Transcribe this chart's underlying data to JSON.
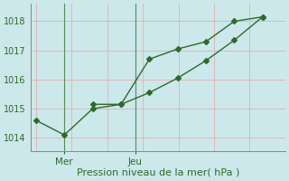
{
  "line1_x": [
    0,
    1,
    2,
    3,
    4,
    5,
    6,
    7,
    8
  ],
  "line1_y": [
    1014.6,
    1014.1,
    1015.0,
    1015.15,
    1016.7,
    1017.05,
    1017.3,
    1018.0,
    1018.15
  ],
  "line2_x": [
    2,
    3,
    4,
    5,
    6,
    7,
    8
  ],
  "line2_y": [
    1015.15,
    1015.15,
    1015.55,
    1016.05,
    1016.65,
    1017.35,
    1018.15
  ],
  "vline_positions": [
    1,
    3.5
  ],
  "ylim": [
    1013.55,
    1018.6
  ],
  "xlim": [
    -0.2,
    8.8
  ],
  "yticks": [
    1014,
    1015,
    1016,
    1017,
    1018
  ],
  "xtick_positions": [
    1,
    3.5
  ],
  "xtick_labels": [
    "Mer",
    "Jeu"
  ],
  "xlabel": "Pression niveau de la mer( hPa )",
  "line_color": "#2d6a2d",
  "bg_color": "#cce8ea",
  "grid_color": "#ddb8b8",
  "vline_color": "#5a8a5a",
  "marker": "D",
  "markersize": 3.0,
  "linewidth": 1.0,
  "tick_fontsize": 7,
  "xlabel_fontsize": 8,
  "xtick_fontsize": 7.5
}
